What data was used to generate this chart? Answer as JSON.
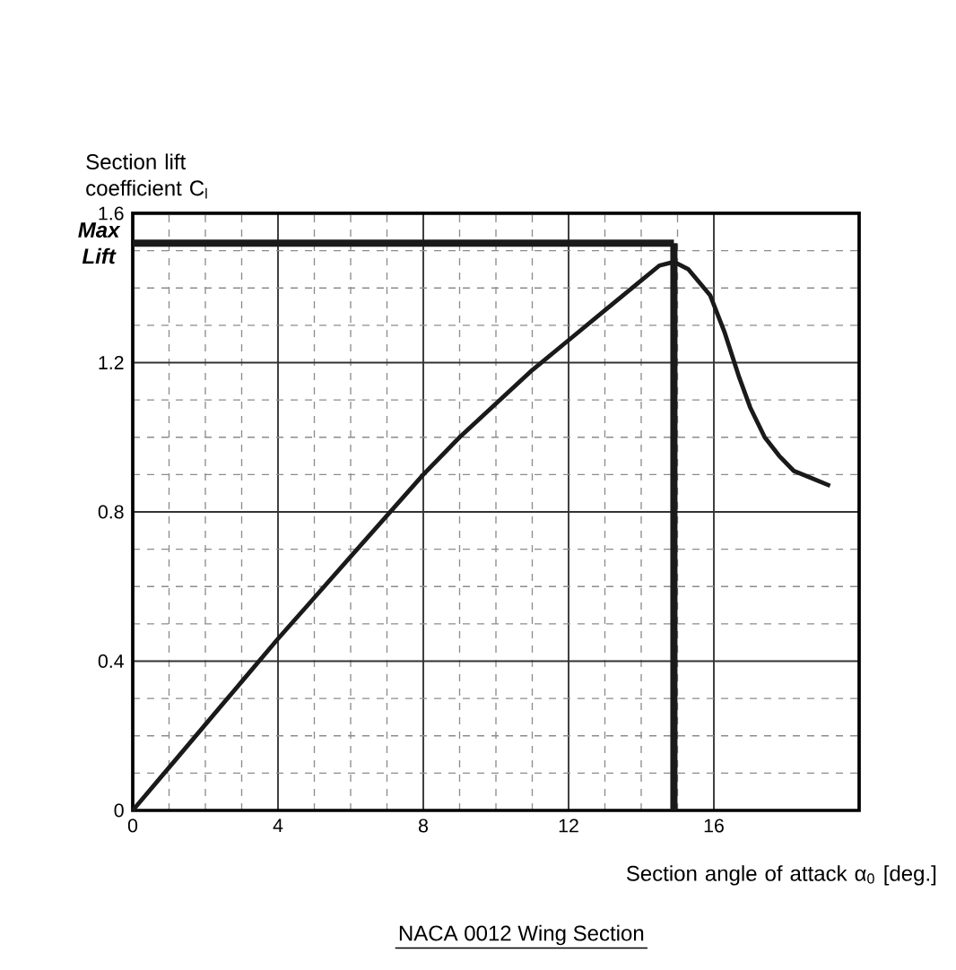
{
  "chart_data": {
    "type": "line",
    "title": "NACA 0012 Wing Section",
    "xlabel": "Section angle of attack α$_{0}$ [deg.]",
    "ylabel": "Section lift coefficient C$_{l}$",
    "x": [
      0,
      1,
      2,
      3,
      4,
      5,
      6,
      7,
      8,
      9,
      10,
      11,
      12,
      13,
      14,
      14.5,
      14.9,
      15.3,
      15.9,
      16.3,
      16.7,
      17.0,
      17.4,
      17.8,
      18.2,
      18.7,
      19.2
    ],
    "series": [
      {
        "color": "#1a1a1a",
        "values": [
          0,
          0.115,
          0.23,
          0.345,
          0.46,
          0.57,
          0.68,
          0.79,
          0.9,
          1.0,
          1.09,
          1.18,
          1.26,
          1.34,
          1.42,
          1.46,
          1.47,
          1.45,
          1.38,
          1.28,
          1.16,
          1.08,
          1.0,
          0.95,
          0.91,
          0.89,
          0.87
        ]
      }
    ],
    "xlim": [
      0,
      20
    ],
    "ylim": [
      0,
      1.6
    ],
    "xticks": [
      0,
      4,
      8,
      12,
      16
    ],
    "yticks": [
      0,
      0.4,
      0.8,
      1.2,
      1.6
    ],
    "grid": true,
    "ref_lines": [
      {
        "axis": "y",
        "value": 1.52,
        "label": "Max Lift",
        "color": "#1a1a1a"
      },
      {
        "axis": "x",
        "value": 14.9,
        "color": "#1a1a1a"
      }
    ]
  }
}
